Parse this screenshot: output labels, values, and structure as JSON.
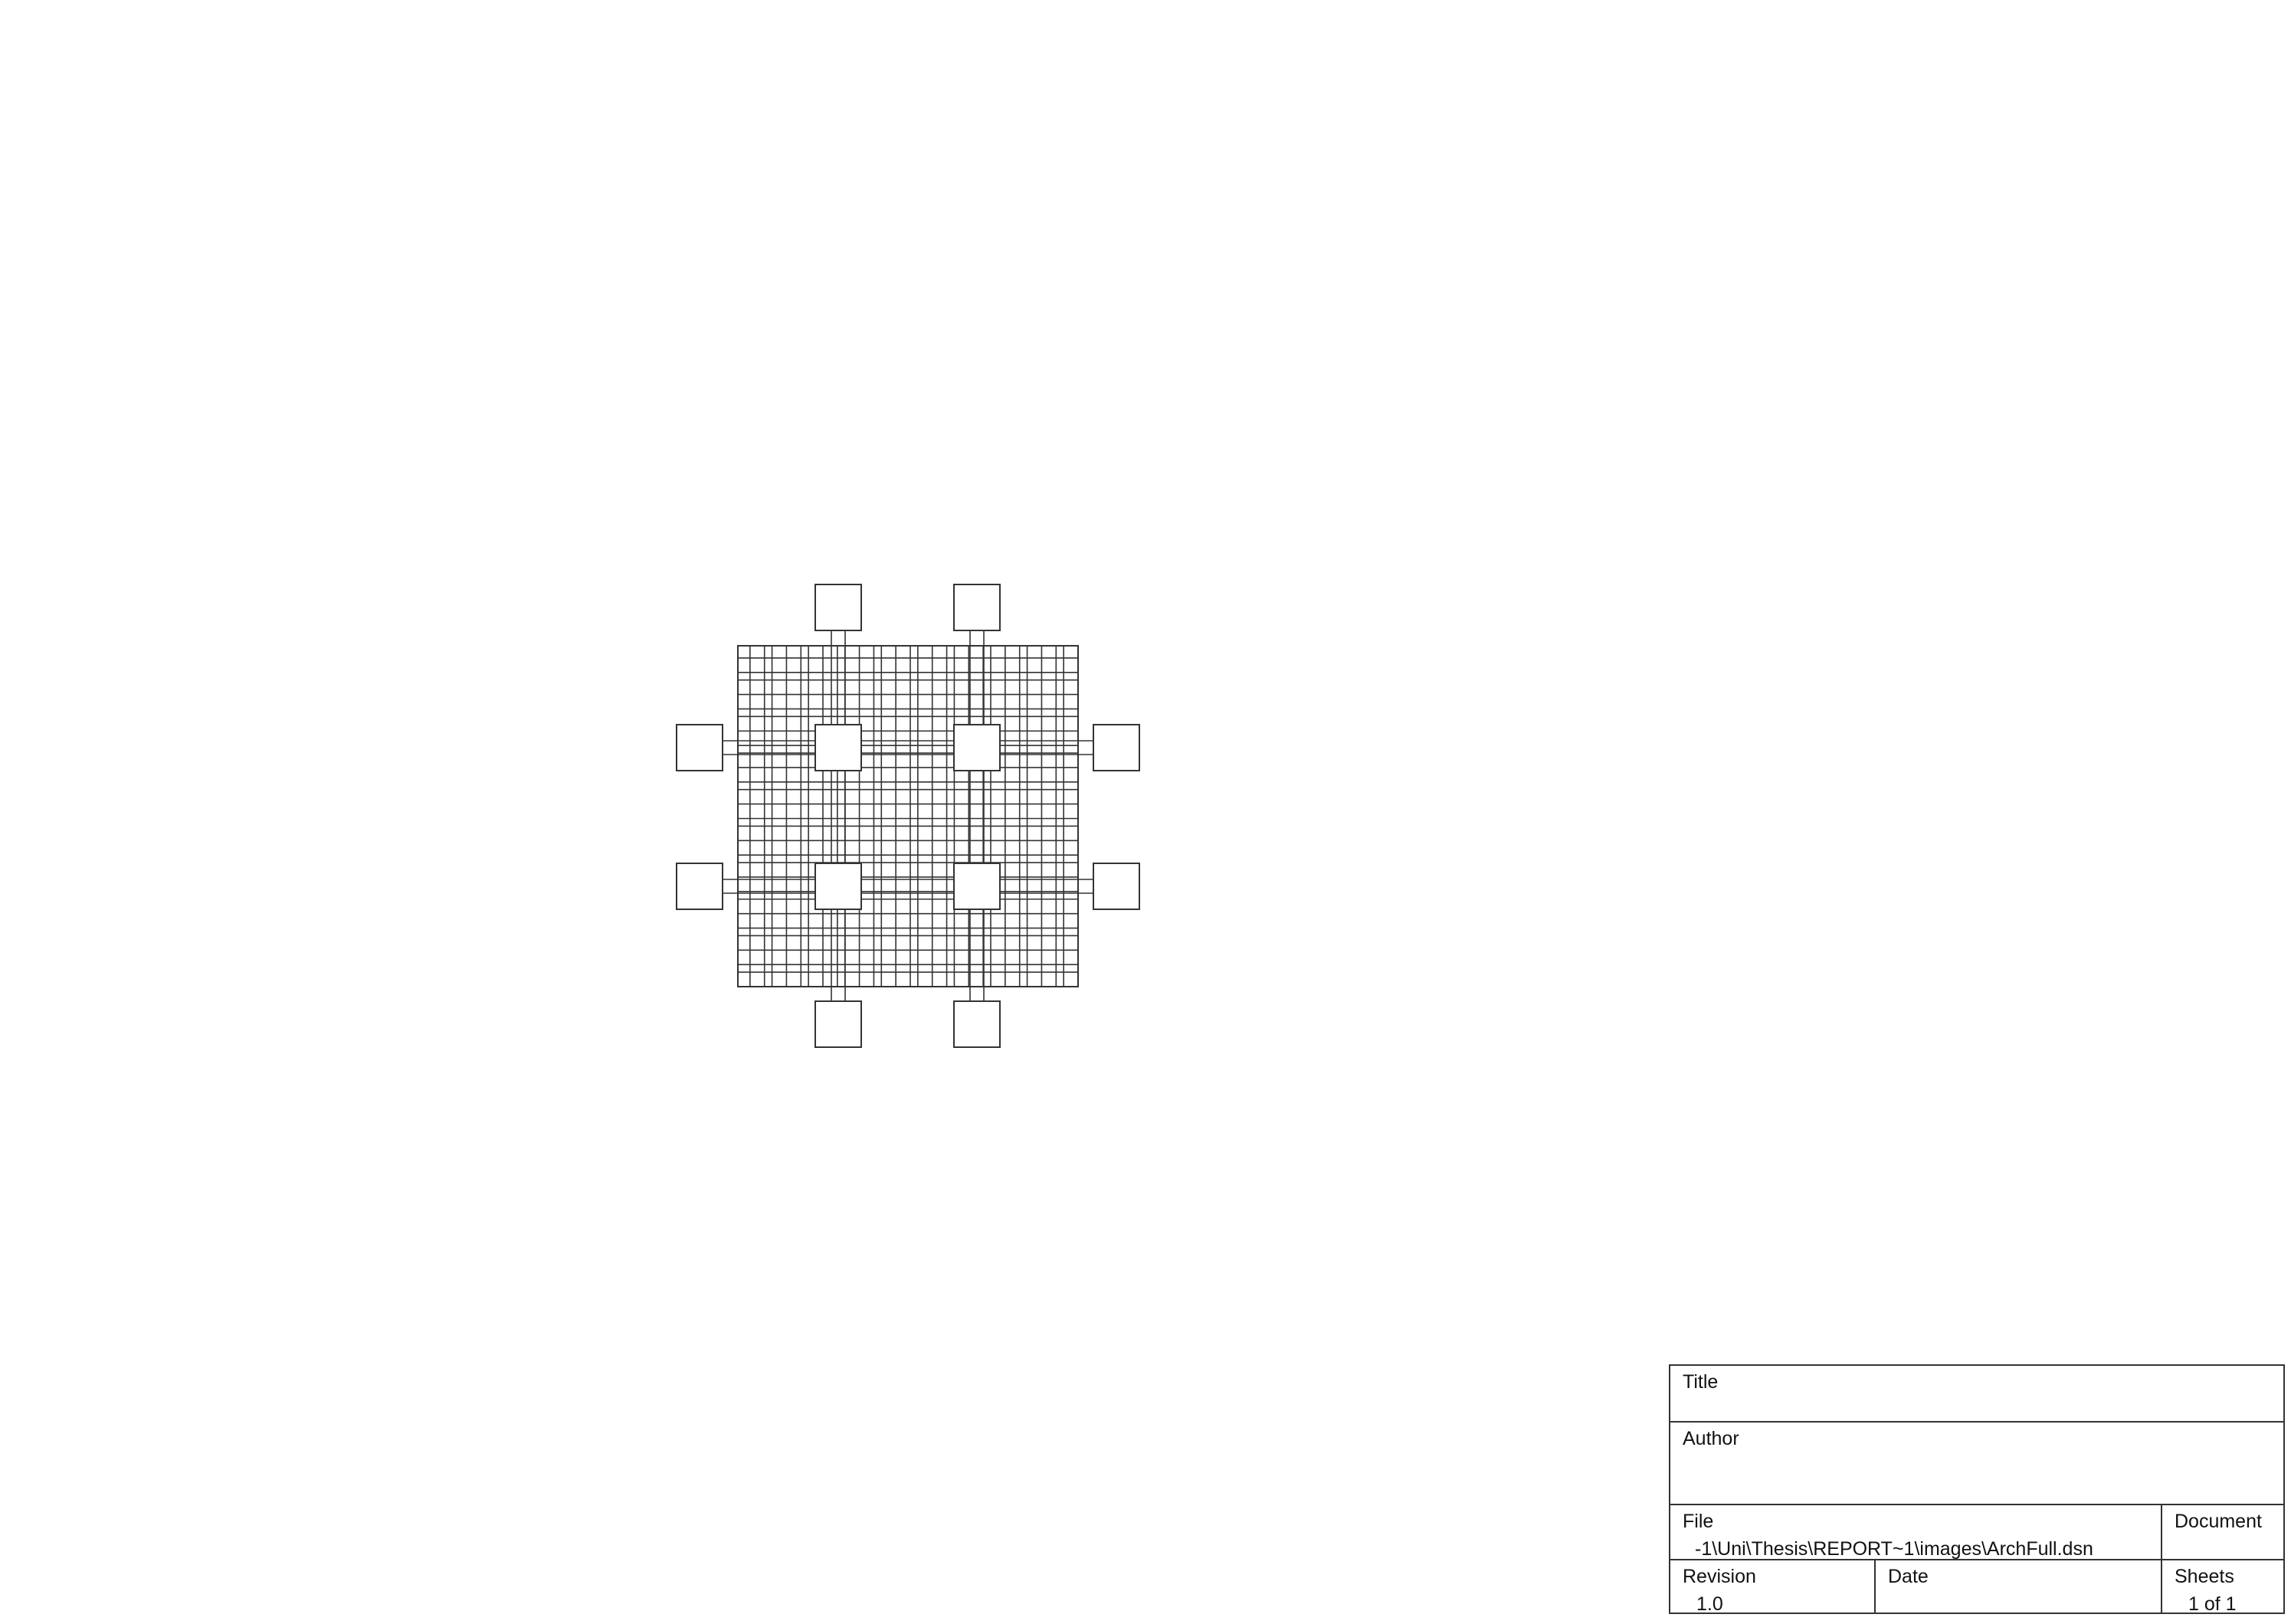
{
  "title_block": {
    "title_label": "Title",
    "title_value": "",
    "author_label": "Author",
    "author_value": "",
    "file_label": "File",
    "file_value": "-1\\Uni\\Thesis\\REPORT~1\\images\\ArchFull.dsn",
    "document_label": "Document",
    "document_value": "",
    "revision_label": "Revision",
    "revision_value": "1.0",
    "date_label": "Date",
    "date_value": "",
    "sheets_label": "Sheets",
    "sheets_value": "1 of 1"
  },
  "diagram": {
    "line_color": "#333333",
    "fabric": {
      "vertical_tracks": 28,
      "horizontal_tracks": 28
    },
    "inner_blocks": 4,
    "io_blocks": 8
  }
}
